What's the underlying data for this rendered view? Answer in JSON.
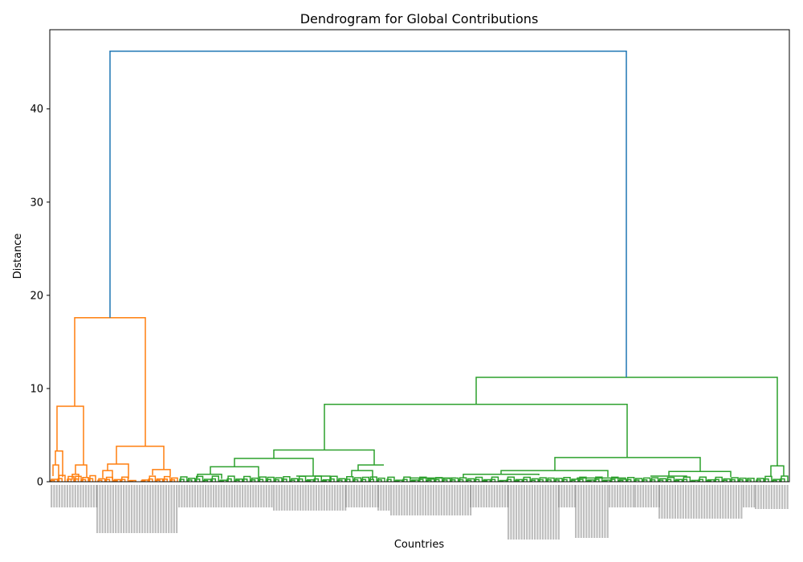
{
  "chart_data": {
    "type": "dendrogram",
    "title": "Dendrogram for Global Contributions",
    "xlabel": "Countries",
    "ylabel": "Distance",
    "ylim": [
      0,
      48.5
    ],
    "yticks": [
      0,
      10,
      20,
      30,
      40
    ],
    "colors": {
      "cluster_1": "#ff7f0e",
      "cluster_2": "#2ca02c",
      "root": "#1f77b4"
    },
    "merges": [
      {
        "name": "root",
        "height": 46.2,
        "children": [
          "orange_cluster",
          "green_cluster"
        ],
        "color": "#1f77b4"
      },
      {
        "name": "orange_cluster",
        "height": 17.6,
        "children": [
          "orange_a",
          "orange_b"
        ],
        "color": "#ff7f0e"
      },
      {
        "name": "orange_a",
        "height": 8.1,
        "children": [
          "orange_a1",
          "orange_a2"
        ],
        "color": "#ff7f0e"
      },
      {
        "name": "orange_a1",
        "height": 3.3,
        "color": "#ff7f0e"
      },
      {
        "name": "orange_a2",
        "height": 1.8,
        "color": "#ff7f0e"
      },
      {
        "name": "orange_b",
        "height": 3.8,
        "children": [
          "orange_b1",
          "orange_b2"
        ],
        "color": "#ff7f0e"
      },
      {
        "name": "orange_b1",
        "height": 1.9,
        "color": "#ff7f0e"
      },
      {
        "name": "orange_b2",
        "height": 1.3,
        "color": "#ff7f0e"
      },
      {
        "name": "green_cluster",
        "height": 11.2,
        "children": [
          "green_a",
          "green_b"
        ],
        "color": "#2ca02c"
      },
      {
        "name": "green_a",
        "height": 8.3,
        "children": [
          "green_a1",
          "green_a2"
        ],
        "color": "#2ca02c"
      },
      {
        "name": "green_a1",
        "height": 3.4,
        "color": "#2ca02c"
      },
      {
        "name": "green_a2",
        "height": 2.6,
        "color": "#2ca02c"
      },
      {
        "name": "green_b",
        "height": 1.7,
        "color": "#2ca02c"
      }
    ]
  }
}
